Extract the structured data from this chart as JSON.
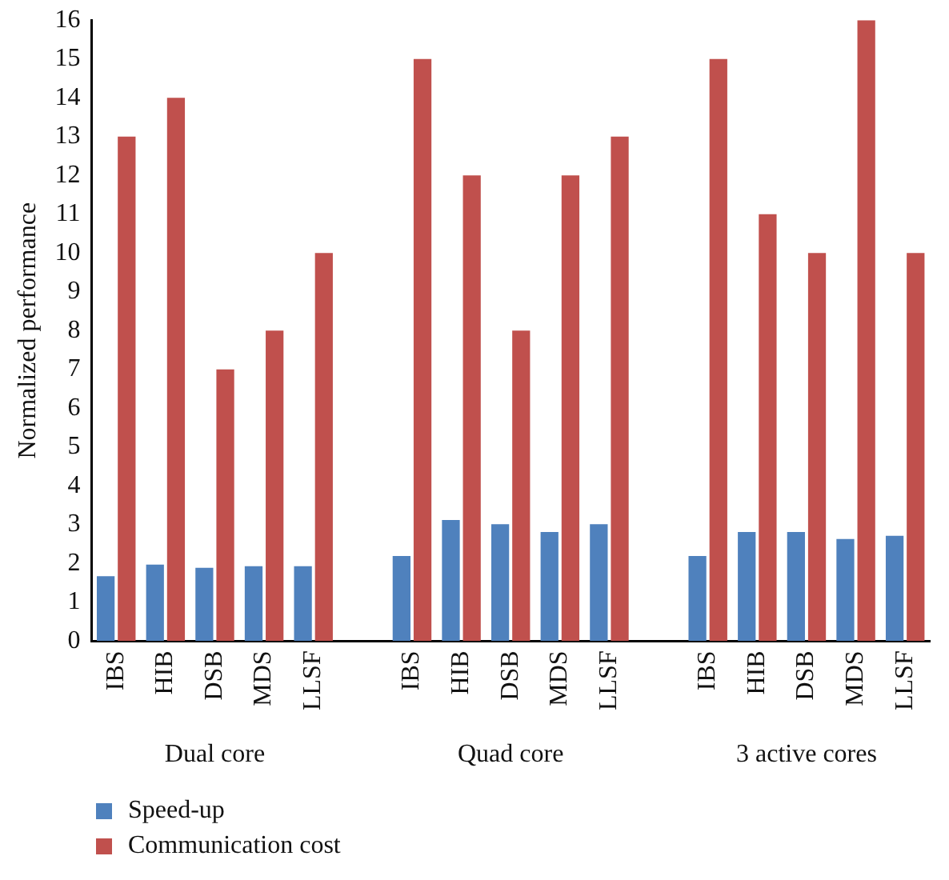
{
  "chart_data": {
    "type": "bar",
    "ylabel": "Normalized performance",
    "categories": [
      "IBS",
      "HIB",
      "DSB",
      "MDS",
      "LLSF",
      null,
      "IBS",
      "HIB",
      "DSB",
      "MDS",
      "LLSF",
      null,
      "IBS",
      "HIB",
      "DSB",
      "MDS",
      "LLSF"
    ],
    "series": [
      {
        "name": "Speed-up",
        "color": "#4f81bd",
        "values": [
          1.67,
          1.97,
          1.89,
          1.93,
          1.93,
          null,
          2.19,
          3.12,
          3.01,
          2.81,
          3.01,
          null,
          2.19,
          2.81,
          2.81,
          2.63,
          2.71
        ]
      },
      {
        "name": "Communication cost",
        "color": "#c0504d",
        "values": [
          13,
          14,
          7,
          8,
          10,
          null,
          15,
          12,
          8,
          12,
          13,
          null,
          15,
          11,
          10,
          16,
          10
        ]
      }
    ],
    "ylim": [
      0,
      16
    ],
    "yticks": [
      0,
      1,
      2,
      3,
      4,
      5,
      6,
      7,
      8,
      9,
      10,
      11,
      12,
      13,
      14,
      15,
      16
    ],
    "grid": false,
    "legend": "bottom left",
    "annotations": [
      "Dual core",
      "Quad core",
      "3 active cores"
    ]
  }
}
